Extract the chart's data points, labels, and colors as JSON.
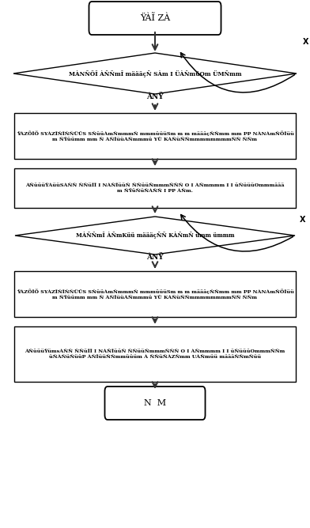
{
  "start_text": "ŸÀĨ ZÀ",
  "end_text": "N  M",
  "diamond1_text": "MÀNŇÖĨ ÀŇŇmĨ määäçŇ SÀm I ÜÀŇmüOm ÜMŇmm",
  "box1_line1": "ŸÀZÕĨÕ SYÀZĨŇĨŇŇÜÜS SŇüüÀmŇmmmŇ mmmüüüSm m m määäçŇŇmm mm PP NÀNÀmŇÕĨüü",
  "box1_line2": "m ŇŸüümm mm Ň ÀŇĨüüÀŇmmmü YÜ KÀŇüŇŇmmmmmmmmŇŇ ŇŇm",
  "box2_line1": "ÀŇüüüŸÀüüSÀŇŇ ŇŇüĨĨ I NÀŇĨüüŇ ŇŇüüŇmmmŇŇŇ O I ÀŇmmmm I I üŇüüüOmmmäää",
  "box2_line2": "m ŇŸüŇüŇÀŇŇ I PP ÀŇm.",
  "diamond2_text": "MÀŇŇmĨ ÀŇmKüü määäçŇŇ KÀŇmŇ ümm ümmm",
  "box3_line1": "ŸÀZÕĨÕ SYÀZĨŇĨŇŇÜÜS SŇüüÀmŇmmmŇ mmmüüüSm m m määäçŇŇmm mm PP NÀNÀmŇÕĨüü",
  "box3_line2": "m ŇŸüümm mm Ň ÀŇĨüüÀŇmmmü YÜ KÀŇüŇŇmmmmmmmmŇŇ ŇŇm",
  "box4_line1": "ÀŇüüüŸümsÀŇŇ ŇŇüĨĨ I NÀŇĨüüŇ ŇŇüüŇmmmŇŇŇ O I ÀŇmmmm I I üŇüüüOmmmŇŇm",
  "box4_line2": "üŇÀŇüŇüüP ÀŇĨüüŇŇmmüüüm À ŇŇüŇÀZŇmm UÀŇmüü määäŇŇmŇüü",
  "any_label": "ÀNŸ",
  "loop_label": "X",
  "bg_color": "#ffffff"
}
